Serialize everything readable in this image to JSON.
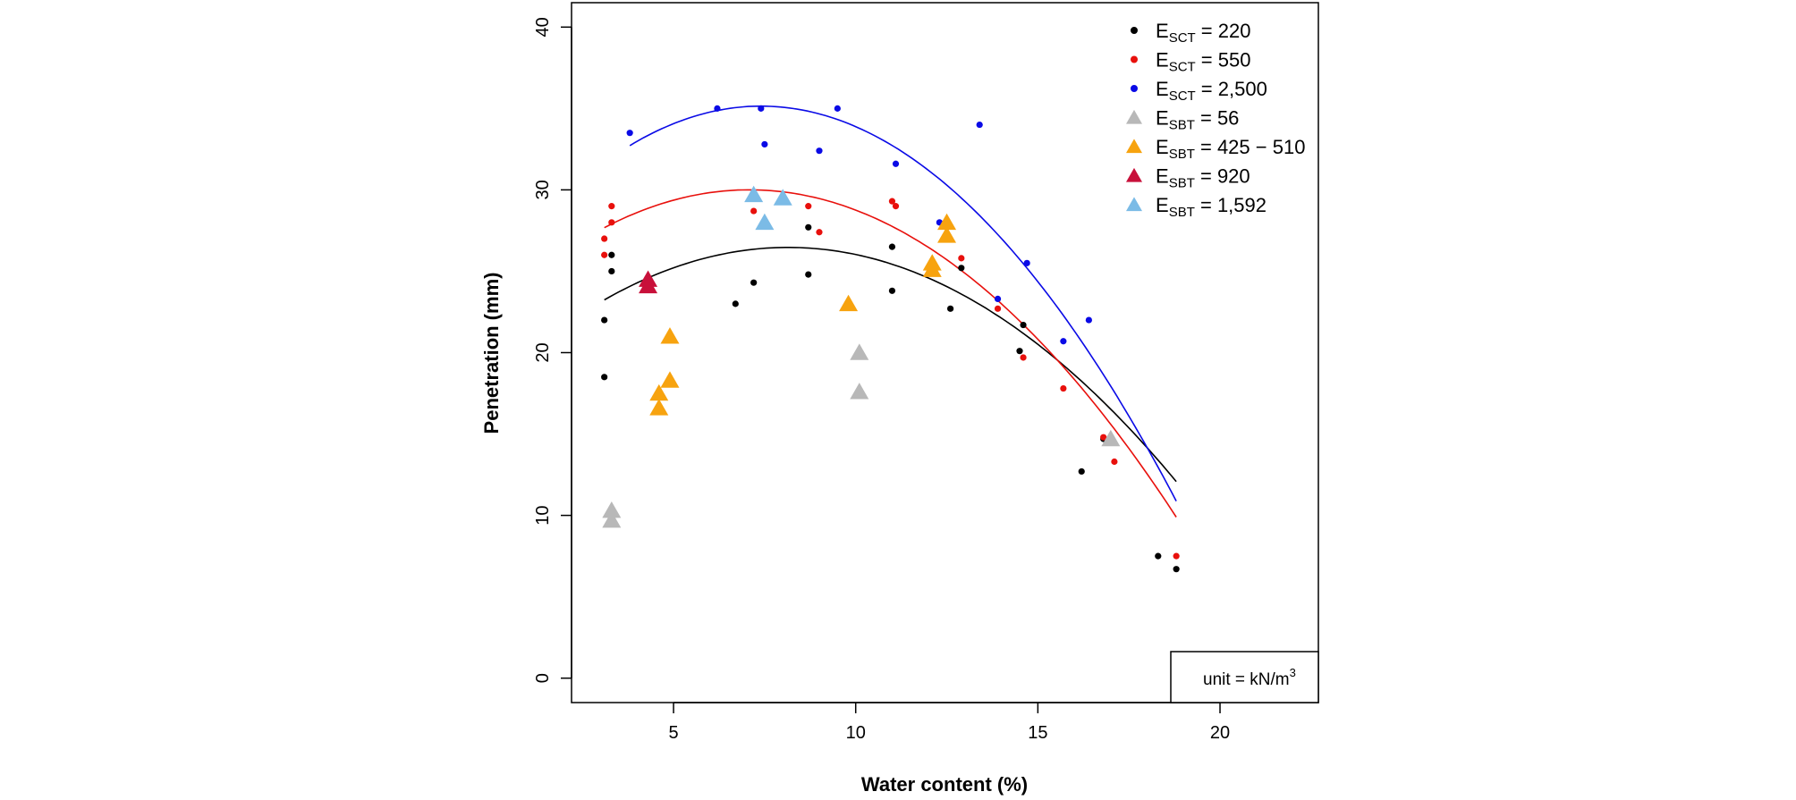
{
  "chart_data": {
    "type": "scatter",
    "xlabel": "Water content (%)",
    "ylabel": "Penetration (mm)",
    "xlim": [
      2.2,
      22.7
    ],
    "ylim": [
      -1.5,
      41.5
    ],
    "x_ticks": [
      "5",
      "10",
      "15",
      "20"
    ],
    "y_ticks": [
      "0",
      "10",
      "20",
      "30",
      "40"
    ],
    "grid": false,
    "legend_position": "top-right",
    "unit_box": {
      "text": "unit = kN/m",
      "superscript": "3",
      "position": "bottom-right"
    },
    "series": [
      {
        "legend_prefix": "E",
        "legend_subscript": "SCT",
        "legend_value": " = 220",
        "marker": "circle",
        "color": "#000000",
        "points": [
          [
            3.1,
            22.0
          ],
          [
            3.1,
            18.5
          ],
          [
            3.3,
            26.0
          ],
          [
            3.3,
            25.0
          ],
          [
            6.7,
            23.0
          ],
          [
            7.2,
            24.3
          ],
          [
            8.7,
            27.7
          ],
          [
            8.7,
            24.8
          ],
          [
            11.0,
            26.5
          ],
          [
            11.0,
            23.8
          ],
          [
            12.6,
            22.7
          ],
          [
            12.9,
            25.2
          ],
          [
            14.5,
            20.1
          ],
          [
            14.6,
            21.7
          ],
          [
            16.2,
            12.7
          ],
          [
            16.8,
            14.7
          ],
          [
            18.3,
            7.5
          ],
          [
            18.8,
            6.7
          ]
        ],
        "fit": [
          -0.1267,
          2.0637,
          18.06
        ]
      },
      {
        "legend_prefix": "E",
        "legend_subscript": "SCT",
        "legend_value": " = 550",
        "marker": "circle",
        "color": "#e8100c",
        "points": [
          [
            3.1,
            27.0
          ],
          [
            3.1,
            26.0
          ],
          [
            3.3,
            29.0
          ],
          [
            3.3,
            28.0
          ],
          [
            7.2,
            28.7
          ],
          [
            8.7,
            29.0
          ],
          [
            9.0,
            27.4
          ],
          [
            11.0,
            29.3
          ],
          [
            11.1,
            29.0
          ],
          [
            12.9,
            25.8
          ],
          [
            13.9,
            22.7
          ],
          [
            14.6,
            19.7
          ],
          [
            15.7,
            17.8
          ],
          [
            16.8,
            14.8
          ],
          [
            17.1,
            13.3
          ],
          [
            18.8,
            7.5
          ]
        ],
        "fit": [
          -0.1465,
          2.0757,
          22.65
        ]
      },
      {
        "legend_prefix": "E",
        "legend_subscript": "SCT",
        "legend_value": " = 2,500",
        "marker": "circle",
        "color": "#0a0ae6",
        "points": [
          [
            3.8,
            33.5
          ],
          [
            6.2,
            35.0
          ],
          [
            7.4,
            35.0
          ],
          [
            7.5,
            32.8
          ],
          [
            9.0,
            32.4
          ],
          [
            9.5,
            35.0
          ],
          [
            11.1,
            31.6
          ],
          [
            12.3,
            28.0
          ],
          [
            13.4,
            34.0
          ],
          [
            13.9,
            23.3
          ],
          [
            14.7,
            25.5
          ],
          [
            15.7,
            20.7
          ],
          [
            16.4,
            22.0
          ]
        ],
        "fit": [
          -0.1868,
          2.7654,
          24.91
        ]
      },
      {
        "legend_prefix": "E",
        "legend_subscript": "SBT",
        "legend_value": " = 56",
        "marker": "triangle",
        "color": "#b8b8b8",
        "points": [
          [
            3.3,
            10.3
          ],
          [
            3.3,
            9.7
          ],
          [
            10.1,
            20.0
          ],
          [
            10.1,
            17.6
          ],
          [
            17.0,
            14.7
          ]
        ]
      },
      {
        "legend_prefix": "E",
        "legend_subscript": "SBT",
        "legend_value": " = 425 − 510",
        "marker": "triangle",
        "color": "#f7a30f",
        "points": [
          [
            4.6,
            17.5
          ],
          [
            4.6,
            16.6
          ],
          [
            4.9,
            21.0
          ],
          [
            4.9,
            18.3
          ],
          [
            9.8,
            23.0
          ],
          [
            12.1,
            25.5
          ],
          [
            12.1,
            25.1
          ],
          [
            12.5,
            28.0
          ],
          [
            12.5,
            27.2
          ]
        ]
      },
      {
        "legend_prefix": "E",
        "legend_subscript": "SBT",
        "legend_value": " = 920",
        "marker": "triangle",
        "color": "#c8103a",
        "points": [
          [
            4.3,
            24.5
          ],
          [
            4.3,
            24.1
          ]
        ]
      },
      {
        "legend_prefix": "E",
        "legend_subscript": "SBT",
        "legend_value": " = 1,592",
        "marker": "triangle",
        "color": "#7bbbe6",
        "points": [
          [
            7.2,
            29.7
          ],
          [
            7.5,
            28.0
          ],
          [
            8.0,
            29.5
          ]
        ]
      }
    ]
  }
}
